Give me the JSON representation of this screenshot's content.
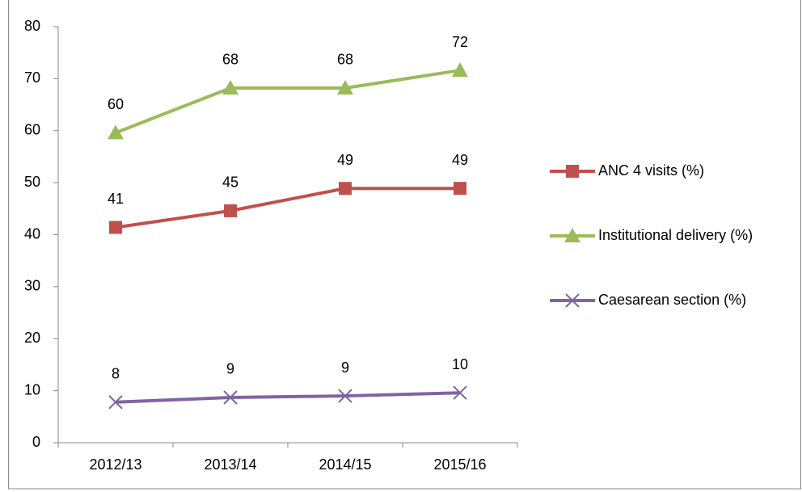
{
  "chart_data": {
    "type": "line",
    "categories": [
      "2012/13",
      "2013/14",
      "2014/15",
      "2015/16"
    ],
    "series": [
      {
        "name": "ANC 4 visits (%)",
        "color": "#c0504d",
        "marker": "square",
        "values": [
          41.4,
          44.6,
          48.9,
          48.9
        ],
        "value_labels": [
          "41",
          "45",
          "49",
          "49"
        ]
      },
      {
        "name": "Institutional delivery (%)",
        "color": "#9bbb59",
        "marker": "triangle",
        "values": [
          59.6,
          68.2,
          68.2,
          71.6
        ],
        "value_labels": [
          "60",
          "68",
          "68",
          "72"
        ]
      },
      {
        "name": "Caesarean section (%)",
        "color": "#8064a2",
        "marker": "x",
        "values": [
          7.8,
          8.7,
          9.0,
          9.6
        ],
        "value_labels": [
          "8",
          "9",
          "9",
          "10"
        ]
      }
    ],
    "ylim": [
      0,
      80
    ],
    "yticks": [
      0,
      10,
      20,
      30,
      40,
      50,
      60,
      70,
      80
    ],
    "legend": "right"
  }
}
